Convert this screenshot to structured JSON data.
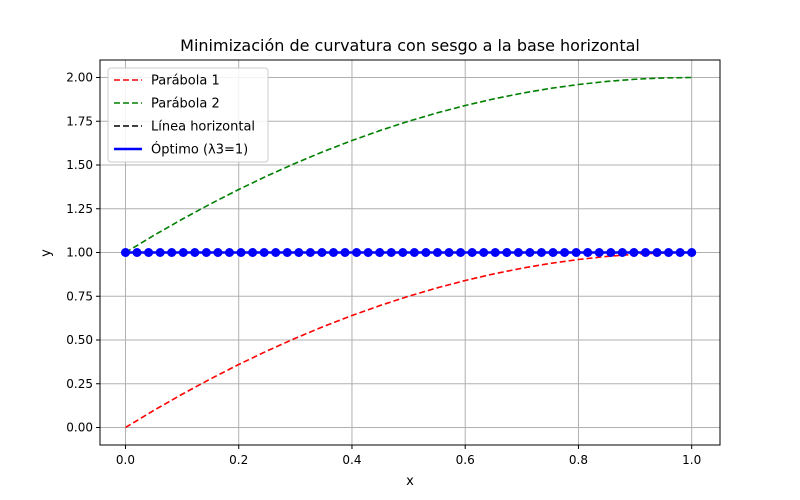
{
  "chart_data": {
    "type": "line",
    "title": "Minimización de curvatura con sesgo a la base horizontal",
    "xlabel": "x",
    "ylabel": "y",
    "xlim": [
      -0.045,
      1.05
    ],
    "ylim": [
      -0.1,
      2.1
    ],
    "xticks": [
      0.0,
      0.2,
      0.4,
      0.6,
      0.8,
      1.0
    ],
    "xtick_labels": [
      "0.0",
      "0.2",
      "0.4",
      "0.6",
      "0.8",
      "1.0"
    ],
    "yticks": [
      0.0,
      0.25,
      0.5,
      0.75,
      1.0,
      1.25,
      1.5,
      1.75,
      2.0
    ],
    "ytick_labels": [
      "0.00",
      "0.25",
      "0.50",
      "0.75",
      "1.00",
      "1.25",
      "1.50",
      "1.75",
      "2.00"
    ],
    "grid": true,
    "legend_position": "top-left",
    "x": [
      0.0,
      0.05,
      0.1,
      0.15,
      0.2,
      0.25,
      0.3,
      0.35,
      0.4,
      0.45,
      0.5,
      0.55,
      0.6,
      0.65,
      0.7,
      0.75,
      0.8,
      0.85,
      0.9,
      0.95,
      1.0
    ],
    "series": [
      {
        "name": "Parábola 1",
        "color": "#ff0000",
        "style": "dashed",
        "values": [
          0.0,
          0.0975,
          0.19,
          0.2775,
          0.36,
          0.4375,
          0.51,
          0.5775,
          0.64,
          0.6975,
          0.75,
          0.7975,
          0.84,
          0.8775,
          0.91,
          0.9375,
          0.96,
          0.9775,
          0.99,
          0.9975,
          1.0
        ]
      },
      {
        "name": "Parábola 2",
        "color": "#008000",
        "style": "dashed",
        "values": [
          1.0,
          1.0975,
          1.19,
          1.2775,
          1.36,
          1.4375,
          1.51,
          1.5775,
          1.64,
          1.6975,
          1.75,
          1.7975,
          1.84,
          1.8775,
          1.91,
          1.9375,
          1.96,
          1.9775,
          1.99,
          1.9975,
          2.0
        ]
      },
      {
        "name": "Línea horizontal",
        "color": "#000000",
        "style": "dashed",
        "values": [
          1.0,
          1.0,
          1.0,
          1.0,
          1.0,
          1.0,
          1.0,
          1.0,
          1.0,
          1.0,
          1.0,
          1.0,
          1.0,
          1.0,
          1.0,
          1.0,
          1.0,
          1.0,
          1.0,
          1.0,
          1.0
        ]
      },
      {
        "name": "Óptimo (λ3=1)",
        "color": "#0000ff",
        "style": "solid-markers",
        "marker_count": 50,
        "x_range": [
          0.0,
          1.0
        ],
        "value": 1.0
      }
    ]
  }
}
